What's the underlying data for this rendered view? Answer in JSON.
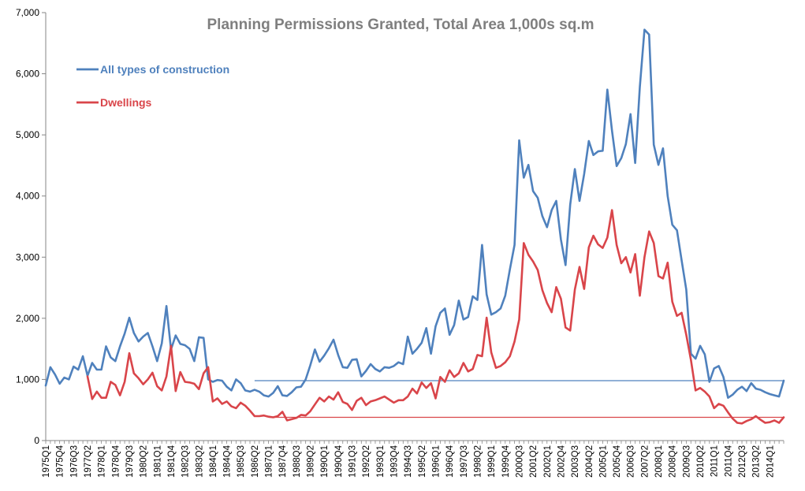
{
  "chart_data": {
    "type": "line",
    "title": "Planning Permissions Granted, Total Area 1,000s sq.m",
    "xlabel": "",
    "ylabel": "",
    "ylim": [
      0,
      7000
    ],
    "y_ticks": [
      0,
      1000,
      2000,
      3000,
      4000,
      5000,
      6000,
      7000
    ],
    "y_tick_labels": [
      "0",
      "1,000",
      "2,000",
      "3,000",
      "4,000",
      "5,000",
      "6,000",
      "7,000"
    ],
    "x_start": "1975Q1",
    "x_end": "2014Q4",
    "x_tick_labels": [
      "1975Q1",
      "1975Q4",
      "1976Q3",
      "1977Q2",
      "1978Q1",
      "1978Q4",
      "1979Q3",
      "1980Q2",
      "1981Q1",
      "1981Q4",
      "1982Q3",
      "1983Q2",
      "1984Q1",
      "1984Q4",
      "1985Q3",
      "1986Q2",
      "1987Q1",
      "1987Q4",
      "1988Q3",
      "1989Q2",
      "1990Q1",
      "1990Q4",
      "1991Q3",
      "1992Q2",
      "1993Q1",
      "1993Q4",
      "1994Q3",
      "1995Q2",
      "1996Q1",
      "1996Q4",
      "1997Q3",
      "1998Q2",
      "1999Q1",
      "1999Q4",
      "2000Q3",
      "2001Q2",
      "2002Q1",
      "2002Q4",
      "2003Q3",
      "2004Q2",
      "2005Q1",
      "2005Q4",
      "2006Q3",
      "2007Q2",
      "2008Q1",
      "2008Q4",
      "2009Q3",
      "2010Q2",
      "2011Q1",
      "2011Q4",
      "2012Q3",
      "2013Q2",
      "2014Q1"
    ],
    "series": [
      {
        "name": "All types of construction",
        "color": "#4f81bd",
        "start_index": 0,
        "values": [
          900,
          1200,
          1080,
          930,
          1030,
          1000,
          1210,
          1160,
          1380,
          1060,
          1270,
          1160,
          1160,
          1540,
          1360,
          1300,
          1540,
          1750,
          2010,
          1760,
          1620,
          1700,
          1760,
          1540,
          1300,
          1590,
          2200,
          1490,
          1720,
          1580,
          1560,
          1500,
          1300,
          1690,
          1680,
          1000,
          960,
          990,
          980,
          880,
          820,
          1000,
          940,
          820,
          800,
          830,
          800,
          740,
          720,
          780,
          890,
          740,
          730,
          790,
          870,
          880,
          1000,
          1230,
          1490,
          1290,
          1390,
          1510,
          1650,
          1400,
          1200,
          1190,
          1320,
          1330,
          1050,
          1140,
          1250,
          1170,
          1130,
          1200,
          1190,
          1220,
          1280,
          1250,
          1700,
          1420,
          1500,
          1600,
          1840,
          1420,
          1870,
          2090,
          2160,
          1730,
          1890,
          2290,
          1980,
          2020,
          2360,
          2300,
          3200,
          2390,
          2060,
          2100,
          2160,
          2370,
          2800,
          3200,
          4910,
          4300,
          4510,
          4080,
          3970,
          3670,
          3490,
          3770,
          3920,
          3290,
          2870,
          3860,
          4440,
          3920,
          4360,
          4900,
          4670,
          4730,
          4740,
          5740,
          5070,
          4490,
          4620,
          4850,
          5340,
          4540,
          5780,
          6720,
          6640,
          4840,
          4510,
          4780,
          4000,
          3530,
          3440,
          2950,
          2470,
          1420,
          1340,
          1550,
          1410,
          960,
          1180,
          1220,
          1040,
          700,
          750,
          830,
          880,
          810,
          940,
          850,
          830,
          790,
          760,
          740,
          720,
          980
        ]
      },
      {
        "name": "Dwellings",
        "color": "#d9454a",
        "start_index": 9,
        "values": [
          1050,
          680,
          800,
          700,
          700,
          960,
          910,
          740,
          960,
          1430,
          1100,
          1020,
          920,
          1000,
          1110,
          890,
          820,
          1050,
          1550,
          810,
          1120,
          960,
          950,
          930,
          840,
          1100,
          1200,
          640,
          690,
          600,
          640,
          560,
          530,
          620,
          570,
          490,
          400,
          400,
          410,
          390,
          380,
          400,
          470,
          330,
          350,
          370,
          420,
          410,
          480,
          590,
          700,
          640,
          720,
          670,
          790,
          630,
          600,
          500,
          650,
          700,
          580,
          640,
          660,
          690,
          720,
          670,
          620,
          660,
          660,
          720,
          850,
          770,
          950,
          860,
          940,
          690,
          1040,
          960,
          1150,
          1040,
          1100,
          1270,
          1130,
          1170,
          1400,
          1380,
          2010,
          1440,
          1190,
          1220,
          1280,
          1380,
          1620,
          1980,
          3230,
          3040,
          2930,
          2790,
          2460,
          2250,
          2100,
          2510,
          2320,
          1850,
          1800,
          2470,
          2840,
          2480,
          3160,
          3350,
          3210,
          3150,
          3320,
          3770,
          3200,
          2900,
          3000,
          2750,
          3050,
          2370,
          3000,
          3420,
          3230,
          2690,
          2650,
          2910,
          2270,
          2040,
          2090,
          1730,
          1320,
          820,
          860,
          800,
          720,
          530,
          600,
          570,
          460,
          360,
          290,
          280,
          320,
          350,
          400,
          340,
          290,
          300,
          330,
          290,
          380
        ]
      }
    ],
    "reference_lines": [
      {
        "series": "All types of construction",
        "value": 980,
        "from": "1986Q2",
        "to": "2014Q4"
      },
      {
        "series": "Dwellings",
        "value": 380,
        "from": "1987Q1",
        "to": "2014Q4"
      }
    ],
    "legend": [
      "All types of construction",
      "Dwellings"
    ],
    "legend_placement": "top-left",
    "grid": false
  }
}
